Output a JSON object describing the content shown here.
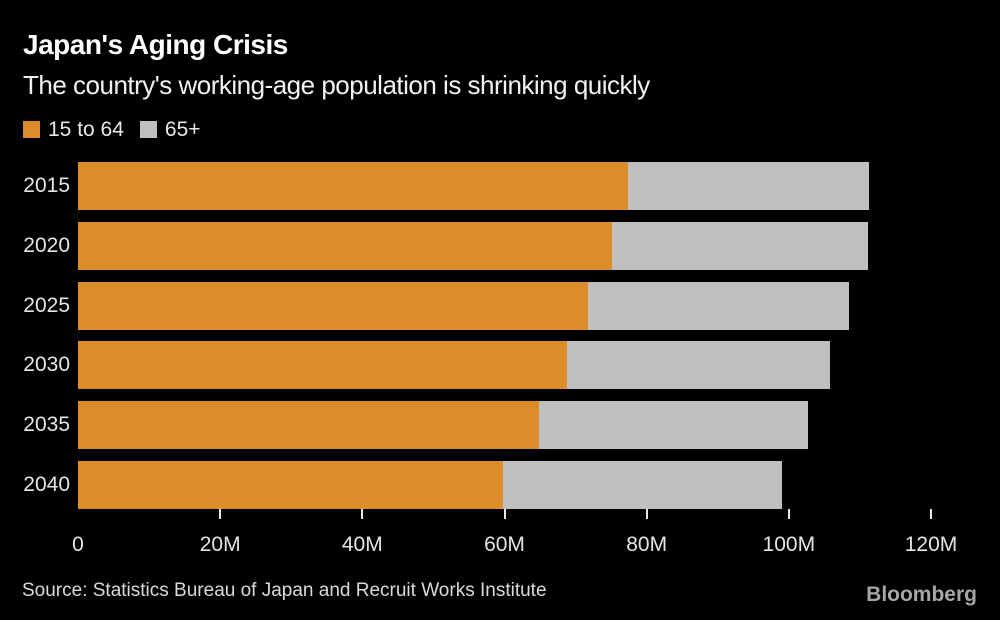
{
  "header": {
    "title": "Japan's Aging Crisis",
    "subtitle": "The country's working-age population is shrinking quickly"
  },
  "legend": {
    "items": [
      {
        "label": "15 to 64",
        "color": "#DC8C28",
        "slug": "15-to-64"
      },
      {
        "label": "65+",
        "color": "#BFBFBF",
        "slug": "65-plus"
      }
    ]
  },
  "chart_data": {
    "type": "bar",
    "orientation": "horizontal",
    "stacked": true,
    "title": "Japan's Aging Crisis",
    "subtitle": "The country's working-age population is shrinking quickly",
    "unit": "millions of people",
    "categories": [
      "2015",
      "2020",
      "2025",
      "2030",
      "2035",
      "2040"
    ],
    "series": [
      {
        "name": "15 to 64",
        "slug": "15-to-64",
        "color": "#DC8C28",
        "values": [
          77.3,
          75.1,
          71.7,
          68.8,
          64.9,
          59.8
        ]
      },
      {
        "name": "65+",
        "slug": "65-plus",
        "color": "#BFBFBF",
        "values": [
          33.9,
          36.0,
          36.7,
          37.0,
          37.8,
          39.2
        ]
      }
    ],
    "totals": [
      111.2,
      111.1,
      108.4,
      105.8,
      102.7,
      99.0
    ],
    "xlim": [
      0,
      120
    ],
    "x_ticks": [
      0,
      20,
      40,
      60,
      80,
      100,
      120
    ],
    "x_tick_labels": [
      "0",
      "20M",
      "40M",
      "60M",
      "80M",
      "100M",
      "120M"
    ],
    "grid": false,
    "legend_position": "top-left"
  },
  "footer": {
    "source": "Source: Statistics Bureau of Japan and Recruit Works Institute",
    "brand": "Bloomberg"
  },
  "colors": {
    "background": "#000000",
    "title_text": "#FFFFFF",
    "subtitle_text": "#F2F2F2",
    "axis_text": "#E4E4E4",
    "tick_mark": "#E8E8E8",
    "source_text": "#DADADA",
    "brand_text": "#A6A6A6",
    "bar_working_age": "#DC8C28",
    "bar_senior": "#BFBFBF"
  }
}
